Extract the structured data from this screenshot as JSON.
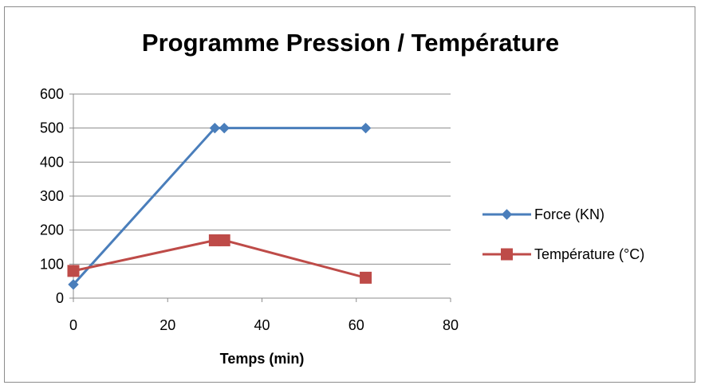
{
  "chart_data": {
    "type": "scatter",
    "title": "Programme Pression / Température",
    "xlabel": "Temps (min)",
    "ylabel": "",
    "xlim": [
      0,
      80
    ],
    "ylim": [
      0,
      600
    ],
    "x_ticks": [
      0,
      20,
      40,
      60,
      80
    ],
    "y_ticks": [
      0,
      100,
      200,
      300,
      400,
      500,
      600
    ],
    "grid": "horizontal",
    "legend_position": "right",
    "series": [
      {
        "name": "Force (KN)",
        "color": "#4a7ebb",
        "marker": "diamond",
        "points": [
          [
            0,
            40
          ],
          [
            30,
            500
          ],
          [
            32,
            500
          ],
          [
            62,
            500
          ]
        ]
      },
      {
        "name": "Température (°C)",
        "color": "#be4b48",
        "marker": "square",
        "points": [
          [
            0,
            80
          ],
          [
            30,
            170
          ],
          [
            32,
            170
          ],
          [
            62,
            60
          ]
        ]
      }
    ]
  }
}
